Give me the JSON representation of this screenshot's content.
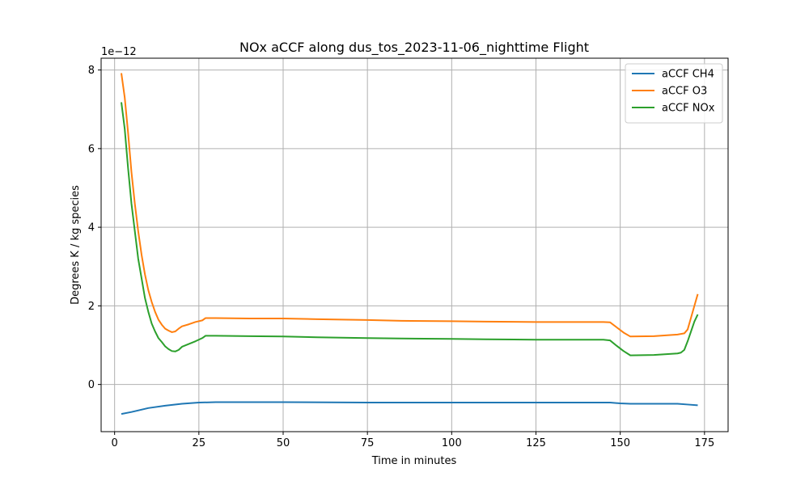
{
  "chart_data": {
    "type": "line",
    "title": "NOx aCCF along dus_tos_2023-11-06_nighttime Flight",
    "xlabel": "Time in minutes",
    "ylabel": "Degrees K / kg species",
    "y_offset_label": "1e−12",
    "xlim": [
      -4,
      182
    ],
    "ylim": [
      -1.2,
      8.3
    ],
    "x_ticks": [
      0,
      25,
      50,
      75,
      100,
      125,
      150,
      175
    ],
    "x_tick_labels": [
      "0",
      "25",
      "50",
      "75",
      "100",
      "125",
      "150",
      "175"
    ],
    "y_ticks": [
      0,
      2,
      4,
      6,
      8
    ],
    "y_tick_labels": [
      "0",
      "2",
      "4",
      "6",
      "8"
    ],
    "grid": true,
    "legend_position": "top-right",
    "series": [
      {
        "name": "aCCF CH4",
        "color": "#1f77b4",
        "points": [
          [
            2,
            -0.75
          ],
          [
            5,
            -0.7
          ],
          [
            10,
            -0.6
          ],
          [
            15,
            -0.54
          ],
          [
            20,
            -0.49
          ],
          [
            25,
            -0.46
          ],
          [
            30,
            -0.45
          ],
          [
            50,
            -0.45
          ],
          [
            75,
            -0.46
          ],
          [
            100,
            -0.46
          ],
          [
            125,
            -0.46
          ],
          [
            145,
            -0.46
          ],
          [
            147,
            -0.46
          ],
          [
            150,
            -0.48
          ],
          [
            153,
            -0.49
          ],
          [
            160,
            -0.49
          ],
          [
            167,
            -0.49
          ],
          [
            170,
            -0.51
          ],
          [
            173,
            -0.53
          ]
        ]
      },
      {
        "name": "aCCF O3",
        "color": "#ff7f0e",
        "points": [
          [
            2,
            7.92
          ],
          [
            3,
            7.3
          ],
          [
            4,
            6.4
          ],
          [
            5,
            5.4
          ],
          [
            6,
            4.6
          ],
          [
            7,
            3.9
          ],
          [
            8,
            3.3
          ],
          [
            9,
            2.8
          ],
          [
            10,
            2.4
          ],
          [
            11,
            2.1
          ],
          [
            12,
            1.85
          ],
          [
            13,
            1.65
          ],
          [
            14,
            1.52
          ],
          [
            15,
            1.42
          ],
          [
            16,
            1.37
          ],
          [
            17,
            1.33
          ],
          [
            18,
            1.35
          ],
          [
            19,
            1.42
          ],
          [
            20,
            1.48
          ],
          [
            22,
            1.53
          ],
          [
            24,
            1.59
          ],
          [
            26,
            1.63
          ],
          [
            27,
            1.69
          ],
          [
            30,
            1.69
          ],
          [
            40,
            1.68
          ],
          [
            50,
            1.68
          ],
          [
            60,
            1.66
          ],
          [
            75,
            1.64
          ],
          [
            85,
            1.62
          ],
          [
            100,
            1.61
          ],
          [
            110,
            1.6
          ],
          [
            125,
            1.59
          ],
          [
            135,
            1.59
          ],
          [
            145,
            1.59
          ],
          [
            147,
            1.58
          ],
          [
            149,
            1.45
          ],
          [
            151,
            1.32
          ],
          [
            153,
            1.22
          ],
          [
            160,
            1.23
          ],
          [
            167,
            1.27
          ],
          [
            169,
            1.3
          ],
          [
            170,
            1.4
          ],
          [
            171,
            1.7
          ],
          [
            172,
            2.0
          ],
          [
            173,
            2.3
          ]
        ]
      },
      {
        "name": "aCCF NOx",
        "color": "#2ca02c",
        "points": [
          [
            2,
            7.18
          ],
          [
            3,
            6.5
          ],
          [
            4,
            5.5
          ],
          [
            5,
            4.6
          ],
          [
            6,
            3.9
          ],
          [
            7,
            3.2
          ],
          [
            8,
            2.7
          ],
          [
            9,
            2.2
          ],
          [
            10,
            1.85
          ],
          [
            11,
            1.55
          ],
          [
            12,
            1.35
          ],
          [
            13,
            1.18
          ],
          [
            14,
            1.08
          ],
          [
            15,
            0.97
          ],
          [
            16,
            0.9
          ],
          [
            17,
            0.85
          ],
          [
            18,
            0.84
          ],
          [
            19,
            0.88
          ],
          [
            20,
            0.96
          ],
          [
            22,
            1.03
          ],
          [
            24,
            1.1
          ],
          [
            26,
            1.18
          ],
          [
            27,
            1.24
          ],
          [
            30,
            1.24
          ],
          [
            40,
            1.23
          ],
          [
            50,
            1.22
          ],
          [
            60,
            1.2
          ],
          [
            75,
            1.18
          ],
          [
            85,
            1.17
          ],
          [
            100,
            1.16
          ],
          [
            110,
            1.15
          ],
          [
            125,
            1.14
          ],
          [
            135,
            1.14
          ],
          [
            145,
            1.14
          ],
          [
            147,
            1.12
          ],
          [
            149,
            0.98
          ],
          [
            151,
            0.85
          ],
          [
            153,
            0.74
          ],
          [
            160,
            0.75
          ],
          [
            167,
            0.79
          ],
          [
            168,
            0.81
          ],
          [
            169,
            0.88
          ],
          [
            170,
            1.1
          ],
          [
            171,
            1.35
          ],
          [
            172,
            1.6
          ],
          [
            173,
            1.78
          ]
        ]
      }
    ]
  }
}
